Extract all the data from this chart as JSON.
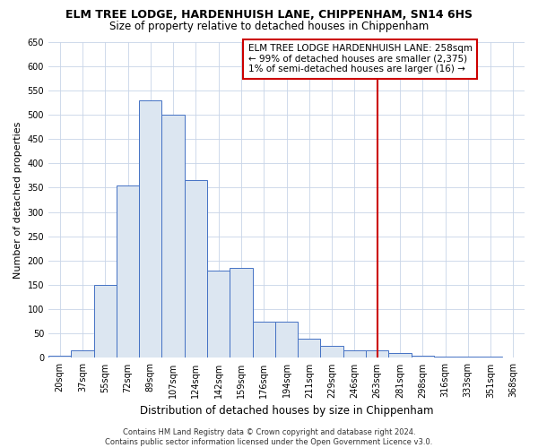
{
  "title": "ELM TREE LODGE, HARDENHUISH LANE, CHIPPENHAM, SN14 6HS",
  "subtitle": "Size of property relative to detached houses in Chippenham",
  "xlabel": "Distribution of detached houses by size in Chippenham",
  "ylabel": "Number of detached properties",
  "footer_line1": "Contains HM Land Registry data © Crown copyright and database right 2024.",
  "footer_line2": "Contains public sector information licensed under the Open Government Licence v3.0.",
  "categories": [
    "20sqm",
    "37sqm",
    "55sqm",
    "72sqm",
    "89sqm",
    "107sqm",
    "124sqm",
    "142sqm",
    "159sqm",
    "176sqm",
    "194sqm",
    "211sqm",
    "229sqm",
    "246sqm",
    "263sqm",
    "281sqm",
    "298sqm",
    "316sqm",
    "333sqm",
    "351sqm",
    "368sqm"
  ],
  "values": [
    4,
    15,
    150,
    355,
    530,
    500,
    365,
    180,
    185,
    75,
    75,
    40,
    25,
    15,
    15,
    10,
    5,
    3,
    2,
    2,
    1
  ],
  "bar_color": "#dce6f1",
  "bar_edge_color": "#4472c4",
  "background_color": "#ffffff",
  "grid_color": "#c8d4e8",
  "ylim": [
    0,
    650
  ],
  "yticks": [
    0,
    50,
    100,
    150,
    200,
    250,
    300,
    350,
    400,
    450,
    500,
    550,
    600,
    650
  ],
  "vline_x_index": 14,
  "vline_color": "#cc0000",
  "annotation_text": "ELM TREE LODGE HARDENHUISH LANE: 258sqm\n← 99% of detached houses are smaller (2,375)\n1% of semi-detached houses are larger (16) →",
  "annotation_box_color": "#ffffff",
  "annotation_box_edge_color": "#cc0000",
  "title_fontsize": 9,
  "subtitle_fontsize": 8.5,
  "xlabel_fontsize": 8.5,
  "ylabel_fontsize": 8,
  "tick_fontsize": 7,
  "annotation_fontsize": 7.5,
  "footer_fontsize": 6
}
